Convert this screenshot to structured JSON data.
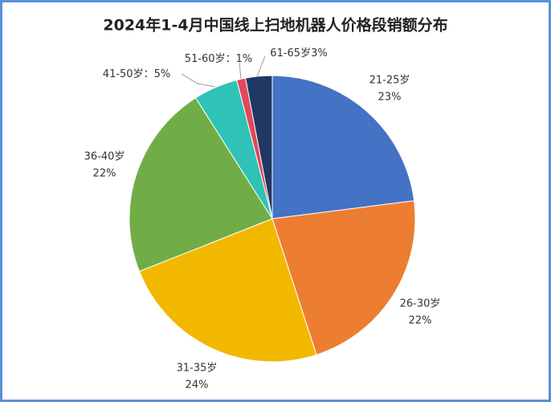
{
  "chart_data": {
    "type": "pie",
    "title": "2024年1-4月中国线上扫地机器人价格段销额分布",
    "categories": [
      "21-25岁",
      "26-30岁",
      "31-35岁",
      "36-40岁",
      "41-50岁：",
      "51-60岁：",
      "61-65岁"
    ],
    "values": [
      23,
      22,
      24,
      22,
      5,
      1,
      3
    ],
    "value_labels": [
      "23%",
      "22%",
      "24%",
      "22%",
      "5%",
      "1%",
      "3%"
    ],
    "colors": [
      "#4472c4",
      "#ed7d31",
      "#f2b800",
      "#70ad47",
      "#2fc2b6",
      "#e2475a",
      "#203864"
    ]
  }
}
